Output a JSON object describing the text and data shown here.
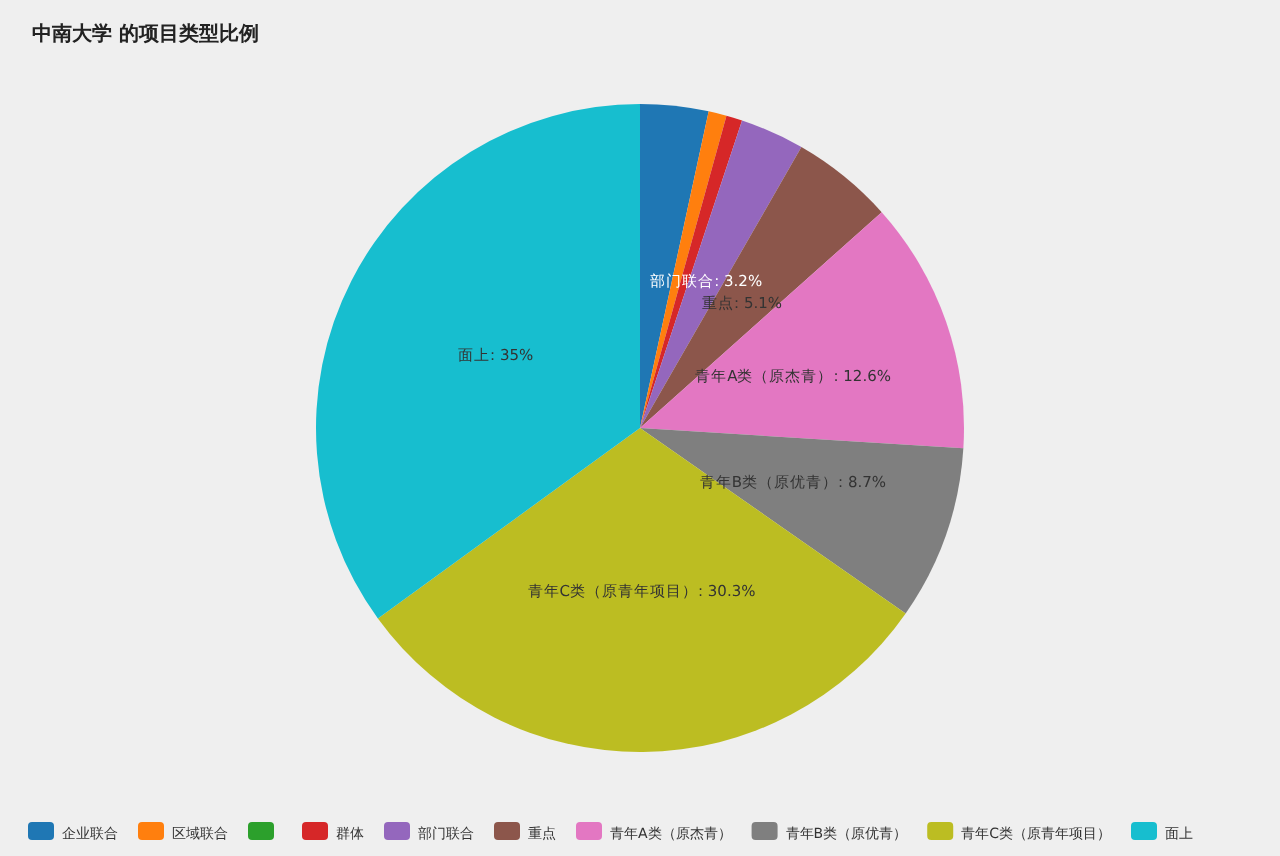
{
  "chart_data": {
    "type": "pie",
    "title": "中南大学 的项目类型比例",
    "categories": [
      "企业联合",
      "区域联合",
      null,
      "群体",
      "部门联合",
      "重点",
      "青年A类（原杰青）",
      "青年B类（原优青）",
      "青年C类（原青年项目）",
      "面上"
    ],
    "values": [
      3.4,
      0.9,
      0,
      0.8,
      3.2,
      5.1,
      12.6,
      8.7,
      30.3,
      35
    ],
    "colors": [
      "#1f77b4",
      "#ff7f0e",
      "#2ca02c",
      "#d62728",
      "#9467bd",
      "#8c564b",
      "#e377c2",
      "#7f7f7f",
      "#bcbd22",
      "#17becf"
    ],
    "value_labels": [
      null,
      null,
      null,
      null,
      "部门联合: 3.2%",
      "重点: 5.1%",
      "青年A类（原杰青）: 12.6%",
      "青年B类（原优青）: 8.7%",
      "青年C类（原青年项目）: 30.3%",
      "面上: 35%"
    ],
    "legend": "bottom"
  }
}
